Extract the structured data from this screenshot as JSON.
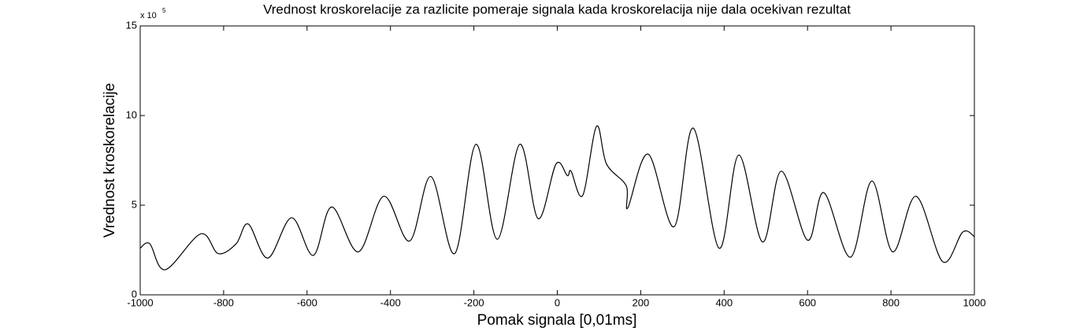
{
  "chart_data": {
    "type": "line",
    "title": "Vrednost kroskorelacije za razlicite pomeraje signala kada kroskorelacija nije dala ocekivan rezultat",
    "x_label": "Pomak signala [0,01ms]",
    "y_label": "Vrednost kroskorelacije",
    "y_multiplier": "x 10",
    "y_exponent": "5",
    "x": [
      -1000,
      -977,
      -940,
      -855,
      -813,
      -770,
      -741,
      -694,
      -637,
      -585,
      -541,
      -477,
      -416,
      -354,
      -303,
      -246,
      -195,
      -144,
      -90,
      -46,
      -3,
      24,
      33,
      61,
      94,
      118,
      165,
      169,
      218,
      280,
      326,
      388,
      435,
      492,
      537,
      600,
      639,
      703,
      754,
      804,
      860,
      924,
      972,
      1000
    ],
    "series": [
      {
        "color": "#000000",
        "values": [
          2.6,
          2.85,
          1.4,
          3.4,
          2.3,
          2.85,
          3.95,
          2.05,
          4.3,
          2.2,
          4.9,
          2.4,
          5.5,
          3.0,
          6.6,
          2.3,
          8.4,
          3.1,
          8.4,
          4.25,
          7.3,
          6.65,
          6.9,
          5.55,
          9.4,
          7.3,
          6.1,
          4.85,
          7.85,
          3.8,
          9.3,
          2.6,
          7.8,
          2.95,
          6.9,
          3.05,
          5.7,
          2.1,
          6.35,
          2.4,
          5.5,
          1.85,
          3.5,
          3.25
        ]
      }
    ],
    "xlim": [
      -1000,
      1000
    ],
    "ylim": [
      0,
      15
    ],
    "xticks": [
      -1000,
      -800,
      -600,
      -400,
      -200,
      0,
      200,
      400,
      600,
      800,
      1000
    ],
    "yticks": [
      0,
      5,
      10,
      15
    ],
    "grid": false
  }
}
